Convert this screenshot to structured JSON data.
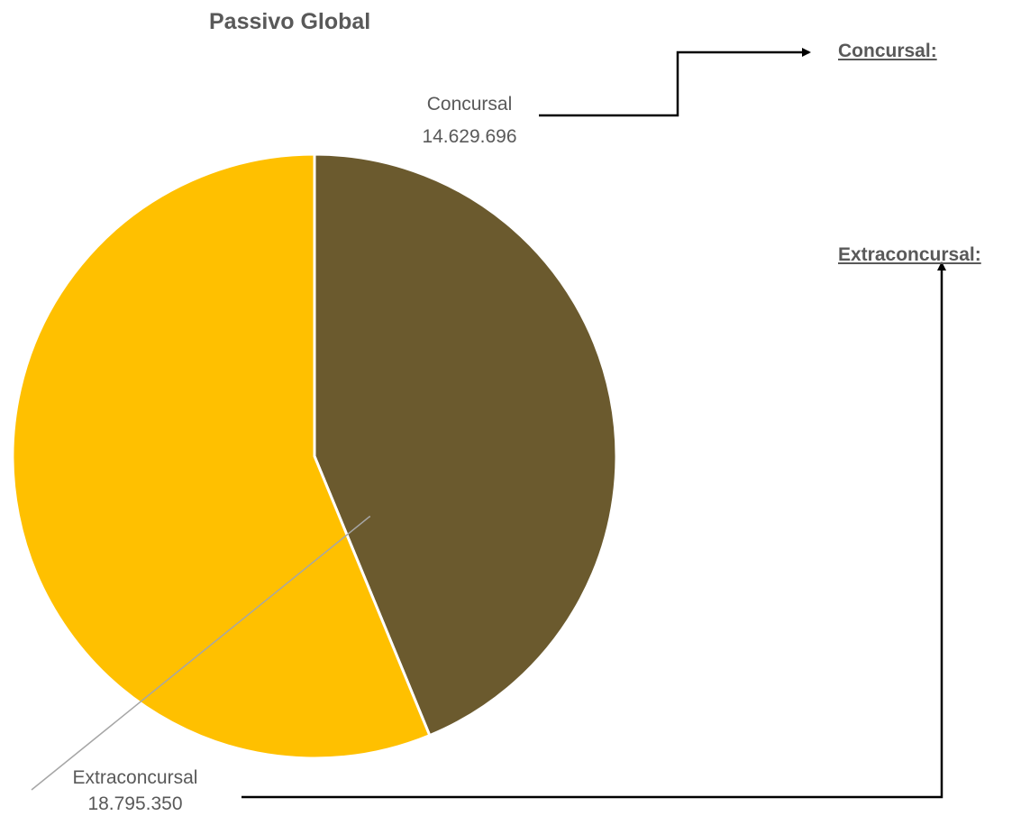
{
  "chart_data": {
    "type": "pie",
    "title": "Passivo Global",
    "categories": [
      "Concursal",
      "Extraconcursal"
    ],
    "values": [
      14629696,
      18795350
    ],
    "value_labels": [
      "14.629.696",
      "18.795.350"
    ],
    "colors": [
      "#6B5A2E",
      "#FFC000"
    ],
    "legend": "none"
  },
  "callouts": {
    "concursal_heading": "Concursal:",
    "extraconcursal_heading": "Extraconcursal:"
  }
}
